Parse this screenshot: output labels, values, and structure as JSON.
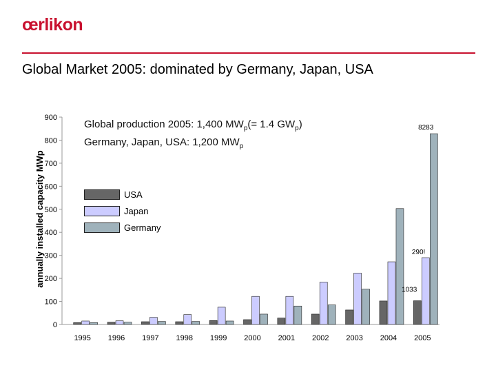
{
  "header": {
    "logo": "œrlikon",
    "title": "Global Market 2005: dominated by Germany, Japan, USA"
  },
  "info": {
    "line1_a": "Global production 2005:  1,400 MW",
    "line1_b": "p",
    "line1_c": "(= 1.4 GW",
    "line1_d": "p",
    "line1_e": ")",
    "line2_a": "Germany, Japan, USA:  1,200 MW",
    "line2_b": "p"
  },
  "colors": {
    "USA": "#666666",
    "Japan": "#ccccff",
    "Germany": "#9fb2bb",
    "accent": "#c8102e"
  },
  "chart_data": {
    "type": "bar",
    "ylabel": "annually installed capacity MWp",
    "ylim": [
      0,
      900
    ],
    "yticks": [
      0,
      100,
      200,
      300,
      400,
      500,
      600,
      700,
      800,
      900
    ],
    "categories": [
      "1995",
      "1996",
      "1997",
      "1998",
      "1999",
      "2000",
      "2001",
      "2002",
      "2003",
      "2004",
      "2005"
    ],
    "series": [
      {
        "name": "USA",
        "values": [
          8,
          10,
          12,
          12,
          17,
          21,
          28,
          45,
          63,
          102,
          103
        ]
      },
      {
        "name": "Japan",
        "values": [
          15,
          16,
          31,
          43,
          75,
          122,
          122,
          184,
          223,
          272,
          290
        ]
      },
      {
        "name": "Germany",
        "values": [
          8,
          10,
          13,
          13,
          15,
          45,
          80,
          85,
          153,
          503,
          828
        ]
      }
    ],
    "annotations": [
      {
        "text": "8283",
        "category": "2005",
        "series": "Germany"
      },
      {
        "text": "290!",
        "category": "2005",
        "series": "Japan"
      },
      {
        "text": "1033",
        "category": "2005",
        "series": "USA"
      }
    ],
    "legend": "left-middle",
    "grid": false
  }
}
